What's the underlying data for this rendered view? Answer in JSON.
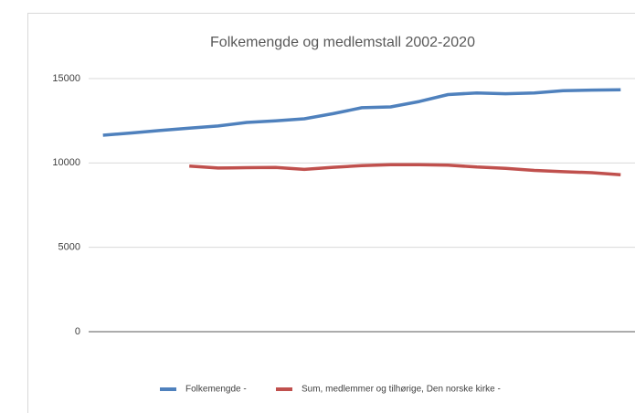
{
  "chart_data": {
    "type": "line",
    "title": "Folkemengde og medlemstall 2002-2020",
    "categories": [
      null,
      null,
      null,
      null,
      null,
      null,
      null,
      null,
      null,
      null,
      null,
      null,
      null,
      null,
      null,
      null,
      null,
      null,
      null
    ],
    "series": [
      {
        "name": "Folkemengde -",
        "color": "#4f81bd",
        "values": [
          11640,
          11780,
          11930,
          12060,
          12190,
          12400,
          12500,
          12620,
          12920,
          13270,
          13320,
          13640,
          14050,
          14150,
          14100,
          14150,
          14280,
          14320,
          14340
        ]
      },
      {
        "name": "Sum, medlemmer og tilhørige, Den norske kirke -",
        "color": "#c0504d",
        "values": [
          null,
          null,
          null,
          9820,
          9700,
          9720,
          9730,
          9620,
          9740,
          9840,
          9900,
          9900,
          9870,
          9760,
          9680,
          9560,
          9480,
          9420,
          9300
        ]
      }
    ],
    "ylim": [
      0,
      15000
    ],
    "yticks": [
      0,
      5000,
      10000,
      15000
    ],
    "grid": true
  }
}
